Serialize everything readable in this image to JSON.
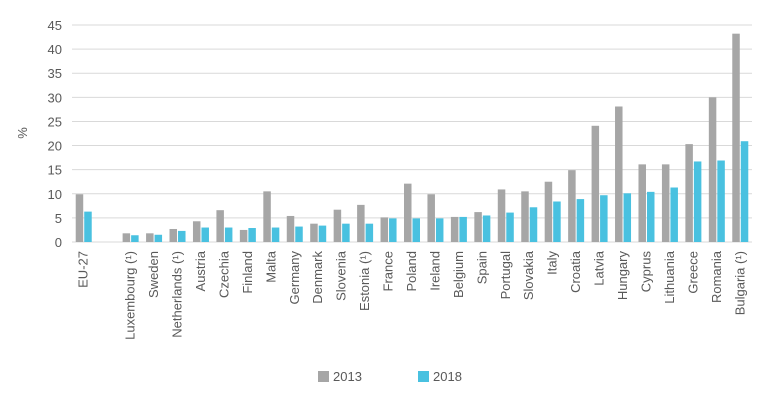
{
  "chart_data": {
    "type": "bar",
    "title": "",
    "xlabel": "",
    "ylabel": "%",
    "ylim": [
      0,
      45
    ],
    "yticks": [
      0,
      5,
      10,
      15,
      20,
      25,
      30,
      35,
      40,
      45
    ],
    "grid": true,
    "legend_position": "bottom-center",
    "categories": [
      "EU-27",
      "",
      "Luxembourg (¹)",
      "Sweden",
      "Netherlands (¹)",
      "Austria",
      "Czechia",
      "Finland",
      "Malta",
      "Germany",
      "Denmark",
      "Slovenia",
      "Estonia (¹)",
      "France",
      "Poland",
      "Ireland",
      "Belgium",
      "Spain",
      "Portugal",
      "Slovakia",
      "Italy",
      "Croatia",
      "Latvia",
      "Hungary",
      "Cyprus",
      "Lithuania",
      "Greece",
      "Romania",
      "Bulgaria (¹)"
    ],
    "series": [
      {
        "name": "2013",
        "color": "#a6a6a6",
        "values": [
          9.9,
          null,
          1.8,
          1.8,
          2.7,
          4.3,
          6.6,
          2.5,
          10.5,
          5.4,
          3.8,
          6.7,
          7.7,
          5.1,
          12.1,
          9.9,
          5.2,
          6.2,
          10.9,
          10.5,
          12.5,
          14.9,
          24.1,
          28.1,
          16.1,
          16.1,
          20.3,
          30.0,
          43.2
        ]
      },
      {
        "name": "2018",
        "color": "#49c1e0",
        "values": [
          6.3,
          null,
          1.4,
          1.5,
          2.3,
          3.0,
          3.0,
          2.9,
          3.0,
          3.2,
          3.4,
          3.8,
          3.8,
          4.9,
          4.9,
          4.9,
          5.2,
          5.5,
          6.1,
          7.2,
          8.4,
          8.9,
          9.7,
          10.1,
          10.4,
          11.3,
          16.7,
          16.9,
          20.9
        ]
      }
    ]
  }
}
